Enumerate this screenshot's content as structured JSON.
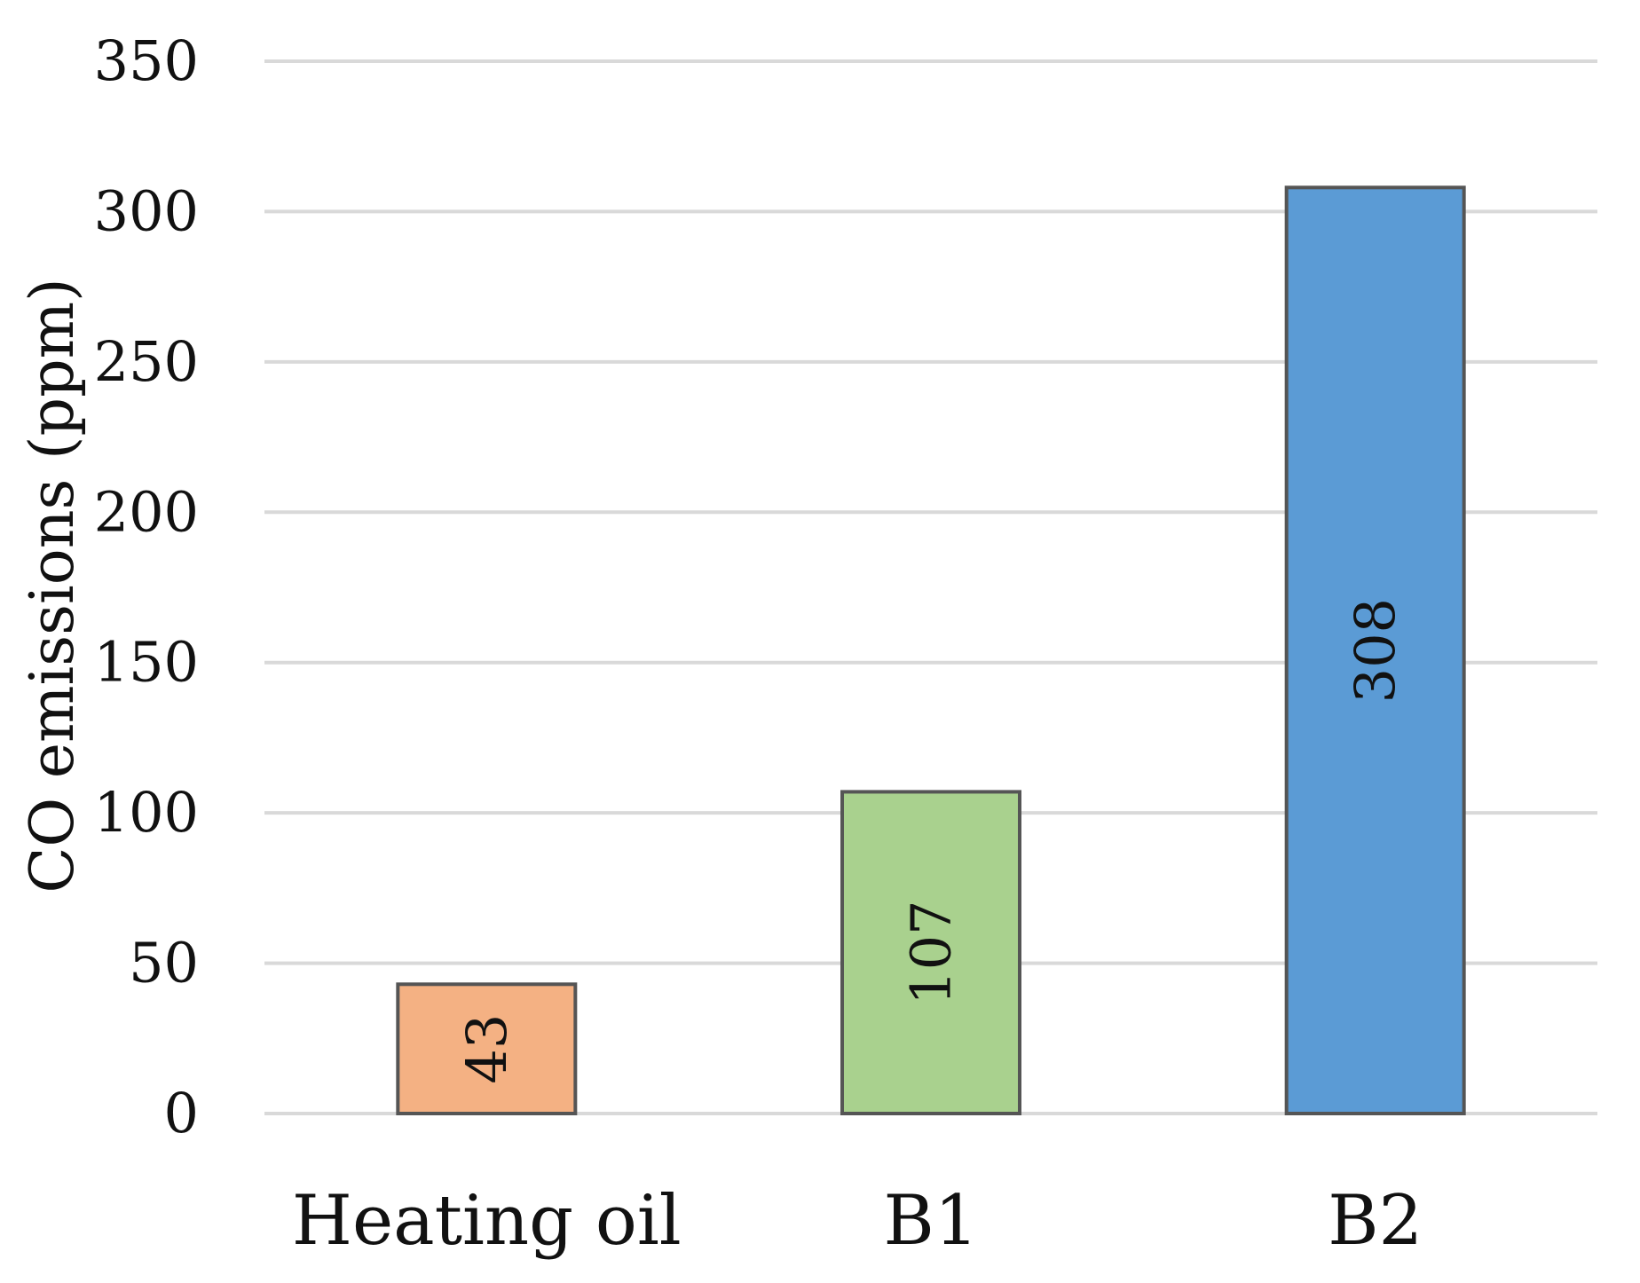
{
  "chart_data": {
    "type": "bar",
    "title": "",
    "xlabel": "",
    "ylabel": "CO emissions (ppm)",
    "categories": [
      "Heating oil",
      "B1",
      "B2"
    ],
    "values": [
      43,
      107,
      308
    ],
    "data_labels": [
      "43",
      "107",
      "308"
    ],
    "bar_colors": [
      "#f4b183",
      "#a9d18e",
      "#5b9bd5"
    ],
    "bar_border_color": "#555555",
    "gridline_color": "#d9d9d9",
    "ylim": [
      0,
      350
    ],
    "yticks": [
      0,
      50,
      100,
      150,
      200,
      250,
      300,
      350
    ],
    "grid": true,
    "legend": "none"
  }
}
